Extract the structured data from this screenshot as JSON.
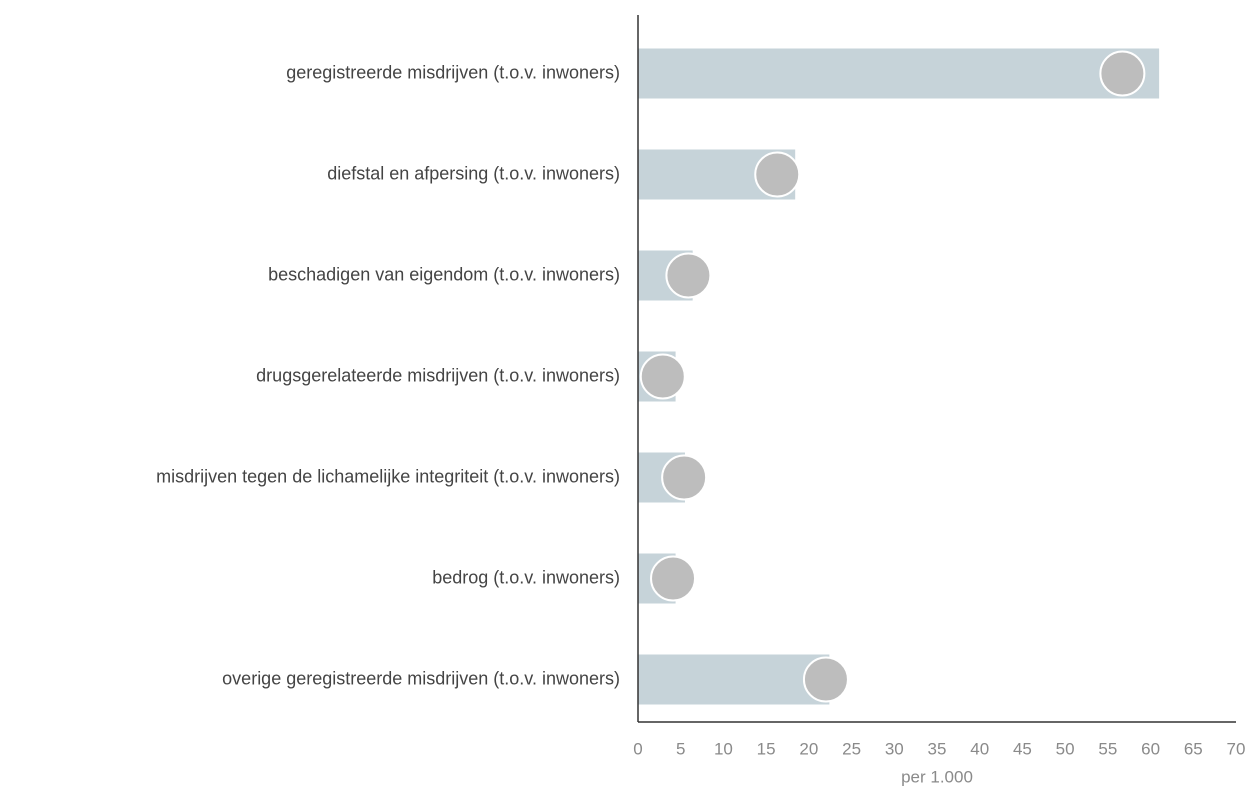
{
  "chart_data": {
    "type": "bar",
    "orientation": "horizontal",
    "categories": [
      "geregistreerde misdrijven (t.o.v. inwoners)",
      "diefstal en afpersing (t.o.v. inwoners)",
      "beschadigen van eigendom (t.o.v. inwoners)",
      "drugsgerelateerde misdrijven (t.o.v. inwoners)",
      "misdrijven tegen de lichamelijke integriteit (t.o.v. inwoners)",
      "bedrog (t.o.v. inwoners)",
      "overige geregistreerde misdrijven (t.o.v. inwoners)"
    ],
    "series": [
      {
        "style": "bar",
        "color": "#c6d3d9",
        "values": [
          61.0,
          18.4,
          6.4,
          4.4,
          5.5,
          4.4,
          22.4
        ]
      },
      {
        "style": "dot",
        "color": "#bdbdbd",
        "values": [
          56.7,
          16.3,
          5.9,
          2.9,
          5.4,
          4.1,
          22.0
        ]
      }
    ],
    "xlabel": "per 1.000",
    "xlim": [
      0,
      70
    ],
    "xticks": [
      0,
      5,
      10,
      15,
      20,
      25,
      30,
      35,
      40,
      45,
      50,
      55,
      60,
      65,
      70
    ]
  }
}
